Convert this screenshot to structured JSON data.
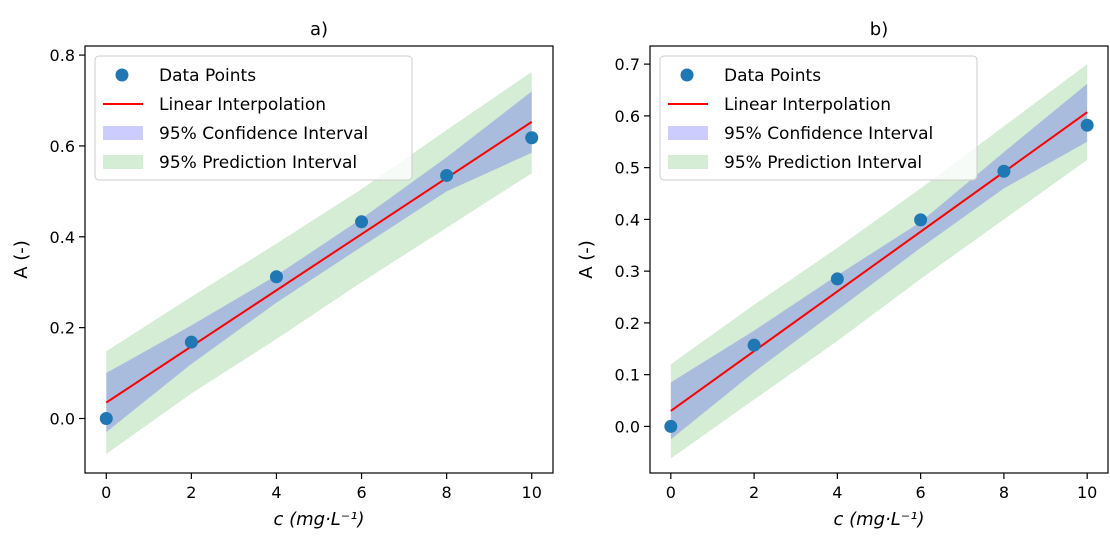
{
  "chart_data": [
    {
      "type": "scatter",
      "title": "a)",
      "xlabel": "c (mg·L⁻¹)",
      "ylabel": "A (-)",
      "xlim": [
        -0.5,
        10.5
      ],
      "ylim": [
        -0.12,
        0.82
      ],
      "xticks": [
        0,
        2,
        4,
        6,
        8,
        10
      ],
      "xtick_labels": [
        "0",
        "2",
        "4",
        "6",
        "8",
        "10"
      ],
      "yticks": [
        0.0,
        0.2,
        0.4,
        0.6,
        0.8
      ],
      "ytick_labels": [
        "0.0",
        "0.2",
        "0.4",
        "0.6",
        "0.8"
      ],
      "grid": false,
      "legend_position": "top-left",
      "points": {
        "name": "Data Points",
        "x": [
          0,
          2,
          4,
          6,
          8,
          10
        ],
        "y": [
          0.0,
          0.168,
          0.312,
          0.433,
          0.535,
          0.618
        ],
        "color": "#1f77b4"
      },
      "fit_line": {
        "name": "Linear Interpolation",
        "x": [
          0,
          10
        ],
        "y": [
          0.035,
          0.653
        ],
        "color": "#ff0000"
      },
      "confidence_band": {
        "name": "95% Confidence Interval",
        "x": [
          0,
          2,
          4,
          6,
          8,
          10
        ],
        "lower": [
          -0.03,
          0.12,
          0.255,
          0.378,
          0.5,
          0.585
        ],
        "upper": [
          0.1,
          0.205,
          0.315,
          0.44,
          0.575,
          0.72
        ],
        "color": "#0000ff"
      },
      "prediction_band": {
        "name": "95% Prediction Interval",
        "x": [
          0,
          2,
          4,
          6,
          8,
          10
        ],
        "lower": [
          -0.078,
          0.055,
          0.175,
          0.3,
          0.42,
          0.54
        ],
        "upper": [
          0.148,
          0.268,
          0.385,
          0.505,
          0.635,
          0.763
        ],
        "color": "#2ca02c"
      }
    },
    {
      "type": "scatter",
      "title": "b)",
      "xlabel": "c (mg·L⁻¹)",
      "ylabel": "A (-)",
      "xlim": [
        -0.5,
        10.5
      ],
      "ylim": [
        -0.09,
        0.735
      ],
      "xticks": [
        0,
        2,
        4,
        6,
        8,
        10
      ],
      "xtick_labels": [
        "0",
        "2",
        "4",
        "6",
        "8",
        "10"
      ],
      "yticks": [
        0.0,
        0.1,
        0.2,
        0.3,
        0.4,
        0.5,
        0.6,
        0.7
      ],
      "ytick_labels": [
        "0.0",
        "0.1",
        "0.2",
        "0.3",
        "0.4",
        "0.5",
        "0.6",
        "0.7"
      ],
      "grid": false,
      "legend_position": "top-left",
      "points": {
        "name": "Data Points",
        "x": [
          0,
          2,
          4,
          6,
          8,
          10
        ],
        "y": [
          0.0,
          0.157,
          0.285,
          0.399,
          0.493,
          0.582
        ],
        "color": "#1f77b4"
      },
      "fit_line": {
        "name": "Linear Interpolation",
        "x": [
          0,
          10
        ],
        "y": [
          0.03,
          0.607
        ],
        "color": "#ff0000"
      },
      "confidence_band": {
        "name": "95% Confidence Interval",
        "x": [
          0,
          2,
          4,
          6,
          8,
          10
        ],
        "lower": [
          -0.025,
          0.105,
          0.225,
          0.345,
          0.46,
          0.55
        ],
        "upper": [
          0.085,
          0.185,
          0.292,
          0.395,
          0.53,
          0.662
        ],
        "color": "#0000ff"
      },
      "prediction_band": {
        "name": "95% Prediction Interval",
        "x": [
          0,
          2,
          4,
          6,
          8,
          10
        ],
        "lower": [
          -0.062,
          0.052,
          0.165,
          0.285,
          0.4,
          0.515
        ],
        "upper": [
          0.12,
          0.235,
          0.345,
          0.46,
          0.58,
          0.7
        ],
        "color": "#2ca02c"
      }
    }
  ]
}
